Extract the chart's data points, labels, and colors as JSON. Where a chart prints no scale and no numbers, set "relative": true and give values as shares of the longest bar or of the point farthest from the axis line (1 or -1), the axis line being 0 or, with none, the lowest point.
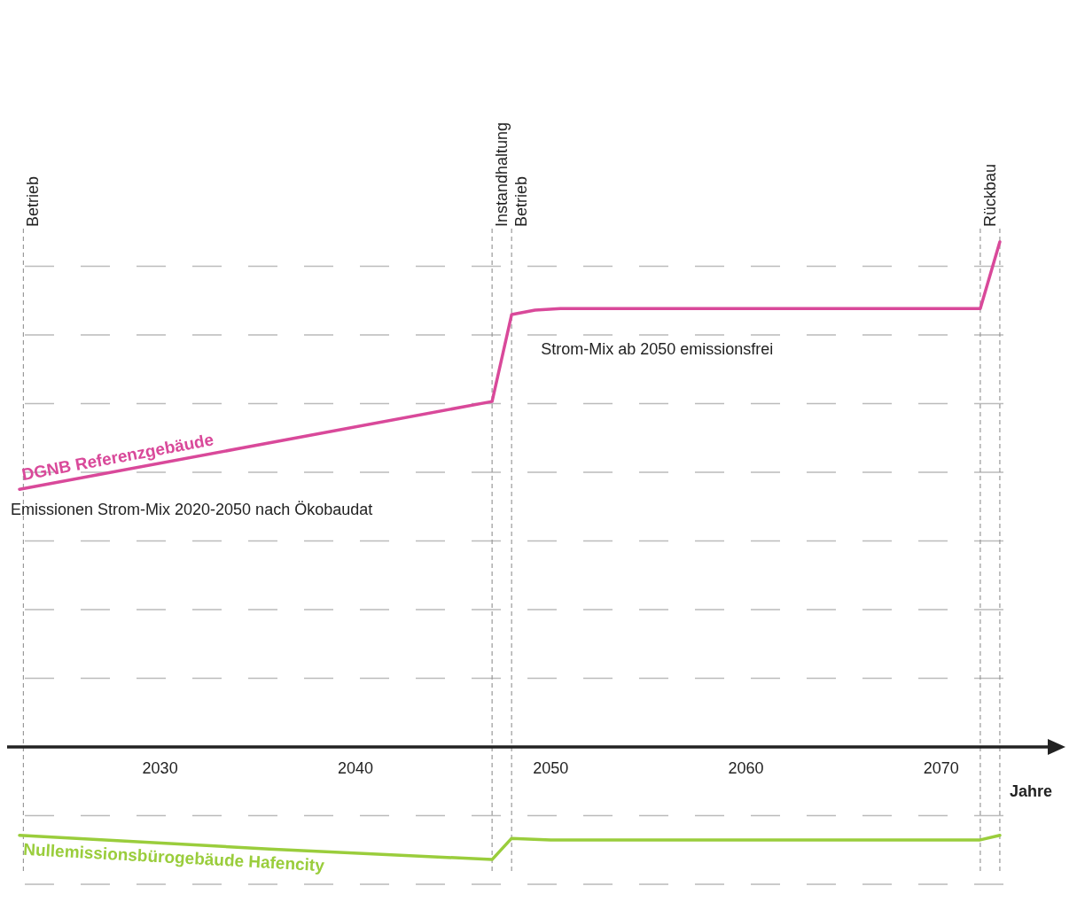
{
  "chart_data": {
    "type": "line",
    "relative": true,
    "xlabel": "Jahre",
    "xlim": [
      2022.8,
      2075.5
    ],
    "xticks": [
      2030,
      2040,
      2050,
      2060,
      2070
    ],
    "series": [
      {
        "name": "DGNB Referenzgebäude",
        "color": "#d9499a",
        "x": [
          2022.8,
          2047,
          2048,
          2049.2,
          2050.5,
          2072,
          2073
        ],
        "values": [
          0.51,
          0.684,
          0.856,
          0.865,
          0.868,
          0.868,
          1.0
        ]
      },
      {
        "name": "Nullemissionsbürogebäude Hafencity",
        "color": "#9acd3c",
        "x": [
          2022.8,
          2035.6,
          2047,
          2048,
          2050,
          2072,
          2073
        ],
        "values": [
          -0.175,
          -0.202,
          -0.223,
          -0.181,
          -0.184,
          -0.184,
          -0.175
        ]
      }
    ],
    "ref_lines": [
      {
        "axis": "x",
        "value": 2023,
        "label": "Betrieb"
      },
      {
        "axis": "x",
        "value": 2047,
        "label": "Instandhaltung"
      },
      {
        "axis": "x",
        "value": 2048,
        "label": "Betrieb"
      },
      {
        "axis": "x",
        "value": 2072,
        "label": "Rückbau"
      },
      {
        "axis": "x",
        "value": 2073,
        "label": null
      }
    ],
    "annotations": [
      "Strom-Mix ab 2050 emissionsfrei",
      "Emissionen Strom-Mix 2020-2050 nach Ökobaudat"
    ],
    "grid": true,
    "line_style": "solid",
    "marker": "none"
  }
}
